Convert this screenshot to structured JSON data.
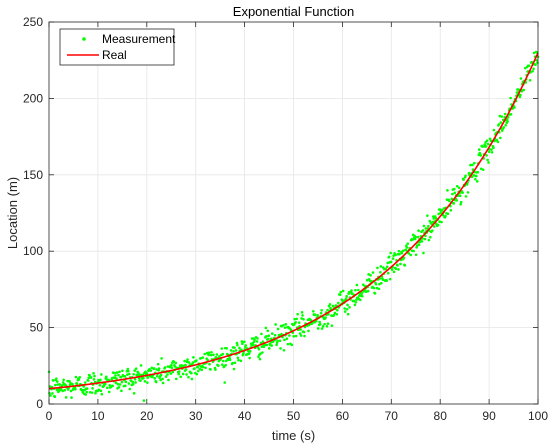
{
  "chart_data": {
    "type": "scatter",
    "title": "Exponential Function",
    "xlabel": "time (s)",
    "ylabel": "Location (m)",
    "xlim": [
      0,
      100
    ],
    "ylim": [
      0,
      250
    ],
    "xticks": [
      "0",
      "10",
      "20",
      "30",
      "40",
      "50",
      "60",
      "70",
      "80",
      "90",
      "100"
    ],
    "yticks": [
      "0",
      "50",
      "100",
      "150",
      "200",
      "250"
    ],
    "grid": true,
    "legend_position": "top-left",
    "legend": [
      "Measurement",
      "Real"
    ],
    "series": [
      {
        "name": "Measurement",
        "kind": "points",
        "color": "#00ff00",
        "noise": 4,
        "count": 1000,
        "x_range": [
          0,
          100
        ],
        "model": "y = 10 * exp(0.03135 * x) + noise"
      },
      {
        "name": "Real",
        "kind": "line",
        "color": "#ff0000",
        "model": "y = 10 * exp(0.03135 * x)",
        "x": [
          0,
          10,
          20,
          30,
          40,
          50,
          60,
          70,
          80,
          90,
          100
        ],
        "y": [
          10,
          13.7,
          18.7,
          25.6,
          35.1,
          48,
          65.6,
          89.8,
          122.9,
          168.1,
          230
        ]
      }
    ]
  }
}
